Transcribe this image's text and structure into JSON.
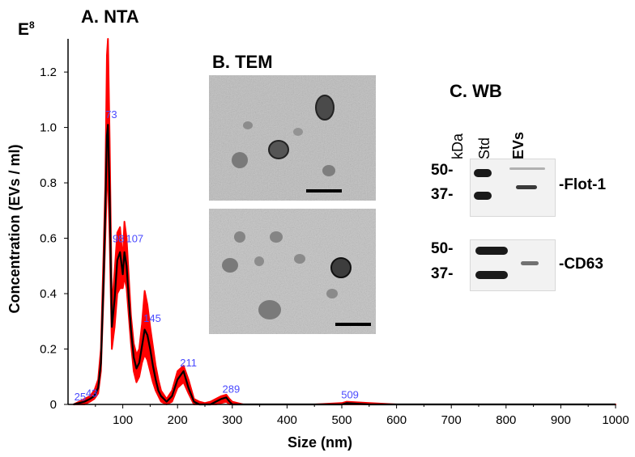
{
  "panels": {
    "nta_title": "A. NTA",
    "tem_title": "B. TEM",
    "wb_title": "C. WB"
  },
  "wb": {
    "column_labels": [
      "kDa",
      "Std",
      "EVs"
    ],
    "blots": [
      {
        "name": "Flot-1",
        "label": "-Flot-1",
        "markers": [
          "50-",
          "37-"
        ]
      },
      {
        "name": "CD63",
        "label": "-CD63",
        "markers": [
          "50-",
          "37-"
        ]
      }
    ]
  },
  "chart_data": {
    "type": "line",
    "title": "A. NTA",
    "exponent_label": "E8",
    "xlabel": "Size (nm)",
    "ylabel": "Concentration (EVs / ml)",
    "xlim": [
      0,
      1000
    ],
    "ylim": [
      0,
      1.32
    ],
    "xticks": [
      100,
      200,
      300,
      400,
      500,
      600,
      700,
      800,
      900,
      1000
    ],
    "yticks": [
      0,
      0.2,
      0.4,
      0.6,
      0.8,
      1.0,
      1.2
    ],
    "ytick_labels": [
      "0",
      "0.2",
      "0.4",
      "0.6",
      "0.8",
      "1.0",
      "1.2"
    ],
    "grid": false,
    "series": [
      {
        "role": "error-band",
        "color": "#ff0000",
        "x": [
          10,
          20,
          30,
          40,
          48,
          55,
          60,
          65,
          68,
          71,
          73,
          76,
          80,
          85,
          90,
          95,
          100,
          103,
          107,
          111,
          115,
          120,
          125,
          130,
          135,
          140,
          145,
          150,
          155,
          160,
          165,
          170,
          180,
          190,
          200,
          211,
          220,
          230,
          240,
          250,
          260,
          270,
          280,
          289,
          295,
          300,
          310,
          320,
          350,
          400,
          450,
          500,
          509,
          550,
          600,
          700,
          800,
          900,
          1000
        ],
        "upper": [
          0,
          0.01,
          0.02,
          0.03,
          0.05,
          0.09,
          0.2,
          0.55,
          0.79,
          1.26,
          1.32,
          0.95,
          0.35,
          0.48,
          0.62,
          0.64,
          0.52,
          0.66,
          0.6,
          0.46,
          0.32,
          0.22,
          0.18,
          0.2,
          0.29,
          0.41,
          0.36,
          0.28,
          0.21,
          0.14,
          0.09,
          0.05,
          0.02,
          0.05,
          0.12,
          0.14,
          0.09,
          0.02,
          0.01,
          0.005,
          0.01,
          0.02,
          0.03,
          0.035,
          0.02,
          0.01,
          0.005,
          0,
          0,
          0,
          0,
          0.005,
          0.01,
          0.005,
          0,
          0,
          0,
          0,
          0
        ],
        "lower": [
          0,
          0,
          0,
          0.01,
          0.02,
          0.04,
          0.12,
          0.4,
          0.6,
          0.8,
          0.82,
          0.6,
          0.2,
          0.28,
          0.4,
          0.42,
          0.42,
          0.46,
          0.42,
          0.32,
          0.22,
          0.12,
          0.08,
          0.1,
          0.15,
          0.18,
          0.16,
          0.12,
          0.08,
          0.05,
          0.03,
          0.01,
          0,
          0.01,
          0.06,
          0.08,
          0.04,
          0,
          0,
          0,
          0,
          0,
          0.005,
          0.01,
          0,
          0,
          0,
          0,
          0,
          0,
          0,
          0,
          0,
          0,
          0,
          0,
          0,
          0,
          0
        ]
      },
      {
        "role": "mean",
        "color": "#000000",
        "x": [
          10,
          20,
          30,
          40,
          48,
          55,
          60,
          65,
          68,
          71,
          73,
          76,
          80,
          85,
          90,
          95,
          100,
          103,
          107,
          111,
          115,
          120,
          125,
          130,
          135,
          140,
          145,
          150,
          155,
          160,
          165,
          170,
          180,
          190,
          200,
          211,
          220,
          230,
          240,
          250,
          260,
          270,
          280,
          289,
          295,
          300,
          310,
          320,
          350,
          400,
          450,
          500,
          509,
          550,
          600,
          700,
          800,
          900,
          1000
        ],
        "y": [
          0,
          0.005,
          0.01,
          0.02,
          0.03,
          0.06,
          0.15,
          0.45,
          0.7,
          0.97,
          1.01,
          0.75,
          0.28,
          0.38,
          0.52,
          0.55,
          0.47,
          0.55,
          0.5,
          0.38,
          0.27,
          0.17,
          0.13,
          0.15,
          0.21,
          0.27,
          0.25,
          0.2,
          0.14,
          0.09,
          0.05,
          0.03,
          0.01,
          0.03,
          0.09,
          0.12,
          0.06,
          0.01,
          0,
          0,
          0,
          0.01,
          0.02,
          0.025,
          0.01,
          0,
          0,
          0,
          0,
          0,
          0,
          0,
          0.005,
          0,
          0,
          0,
          0,
          0,
          0
        ]
      }
    ],
    "peak_annotations": [
      {
        "x": 25,
        "y": 0.003,
        "label": "25"
      },
      {
        "x": 43,
        "y": 0.01,
        "label": "43"
      },
      {
        "x": 73,
        "y": 1.01,
        "label": "73"
      },
      {
        "x": 98,
        "y": 0.55,
        "label": "98"
      },
      {
        "x": 107,
        "y": 0.55,
        "label": "107"
      },
      {
        "x": 145,
        "y": 0.28,
        "label": "145"
      },
      {
        "x": 211,
        "y": 0.12,
        "label": "211"
      },
      {
        "x": 289,
        "y": 0.025,
        "label": "289"
      },
      {
        "x": 509,
        "y": 0.005,
        "label": "509"
      }
    ],
    "annotation_color": "#4a4aff"
  }
}
